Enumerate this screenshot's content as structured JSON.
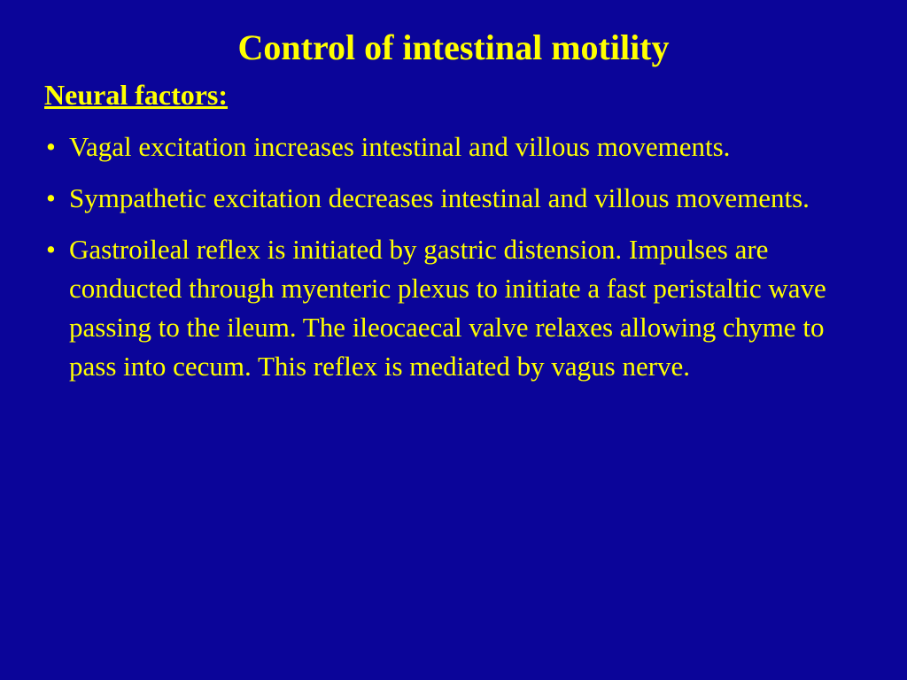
{
  "slide": {
    "background_color": "#0b0599",
    "text_color": "#ffff00",
    "title": "Control of intestinal motility",
    "subheading": "Neural factors:",
    "bullets": [
      "Vagal excitation increases intestinal and villous movements.",
      "Sympathetic excitation decreases intestinal and villous movements.",
      "Gastroileal reflex is initiated by gastric distension. Impulses are conducted through myenteric plexus to initiate a fast peristaltic wave passing to the ileum. The ileocaecal valve relaxes allowing chyme to pass into cecum. This reflex is mediated by vagus nerve."
    ],
    "title_fontsize": 40,
    "subheading_fontsize": 32,
    "body_fontsize": 31,
    "font_family": "Garamond"
  }
}
